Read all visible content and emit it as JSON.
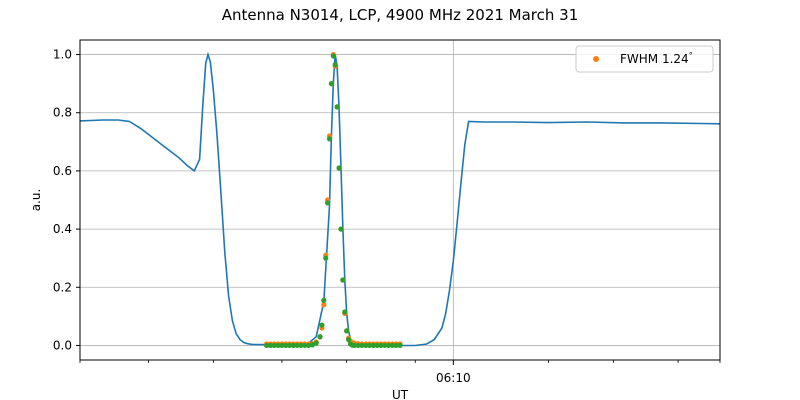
{
  "chart_data": {
    "type": "line",
    "title": "Antenna N3014, LCP, 4900 MHz 2021 March 31",
    "xlabel": "UT",
    "ylabel": "a.u.",
    "x_unit": "minutes UT",
    "xlim": [
      360.2,
      377.0
    ],
    "ylim": [
      -0.05,
      1.05
    ],
    "yticks": [
      0.0,
      0.2,
      0.4,
      0.6,
      0.8,
      1.0
    ],
    "xticks_major": [
      {
        "value": 370.0,
        "label": "06:10"
      }
    ],
    "xticks_minor": [
      360.2,
      362.0,
      363.7,
      365.5,
      367.2,
      369.0,
      372.5,
      374.2,
      375.9,
      377.0
    ],
    "grid": true,
    "legend_position": "top-right",
    "legend": [
      {
        "label": "FWHM 1.24$^\\circ$",
        "display": "FWHM 1.24",
        "suffix": "°",
        "color": "#ff7f0e"
      }
    ],
    "colors": {
      "line": "#1f77b4",
      "fit": "#ff7f0e",
      "data": "#2ca02c"
    },
    "series": [
      {
        "kind": "line",
        "color": "#1f77b4",
        "x": [
          360.2,
          360.8,
          361.2,
          361.5,
          361.8,
          362.0,
          362.2,
          362.4,
          362.6,
          362.8,
          363.0,
          363.2,
          363.34,
          363.42,
          363.5,
          363.56,
          363.62,
          363.7,
          363.8,
          363.9,
          364.0,
          364.1,
          364.2,
          364.3,
          364.4,
          364.5,
          364.6,
          364.7,
          364.8,
          364.9,
          365.0,
          365.2,
          365.4,
          365.6,
          365.8,
          366.0,
          366.2,
          366.4,
          366.6,
          366.75,
          366.8,
          366.85,
          366.9,
          366.95,
          367.0,
          367.05,
          367.1,
          367.15,
          367.2,
          367.25,
          367.3,
          367.35,
          367.4,
          367.45,
          367.5,
          367.6,
          367.8,
          368.0,
          368.5,
          369.0,
          369.3,
          369.5,
          369.7,
          369.8,
          369.9,
          370.0,
          370.1,
          370.2,
          370.3,
          370.4,
          370.8,
          371.5,
          372.5,
          373.5,
          374.5,
          375.5,
          376.5,
          377.0
        ],
        "y": [
          0.772,
          0.775,
          0.775,
          0.77,
          0.745,
          0.725,
          0.705,
          0.685,
          0.665,
          0.645,
          0.62,
          0.6,
          0.64,
          0.82,
          0.97,
          1.0,
          0.975,
          0.88,
          0.72,
          0.52,
          0.32,
          0.17,
          0.085,
          0.04,
          0.02,
          0.01,
          0.006,
          0.004,
          0.003,
          0.003,
          0.003,
          0.003,
          0.003,
          0.003,
          0.003,
          0.004,
          0.008,
          0.03,
          0.15,
          0.48,
          0.72,
          0.9,
          1.0,
          0.96,
          0.82,
          0.61,
          0.4,
          0.225,
          0.11,
          0.05,
          0.02,
          0.008,
          0.004,
          0.002,
          0.001,
          0.0,
          0.0,
          0.0,
          0.0,
          0.0,
          0.005,
          0.02,
          0.06,
          0.11,
          0.19,
          0.29,
          0.42,
          0.56,
          0.69,
          0.77,
          0.768,
          0.768,
          0.766,
          0.768,
          0.765,
          0.765,
          0.763,
          0.762
        ]
      },
      {
        "kind": "scatter",
        "name": "FWHM 1.24°",
        "color": "#ff7f0e",
        "x": [
          365.1,
          365.2,
          365.3,
          365.4,
          365.5,
          365.6,
          365.7,
          365.8,
          365.9,
          366.0,
          366.1,
          366.2,
          366.3,
          366.4,
          366.5,
          366.55,
          366.6,
          366.65,
          366.7,
          366.75,
          366.8,
          366.85,
          366.9,
          366.95,
          367.0,
          367.05,
          367.1,
          367.15,
          367.2,
          367.25,
          367.3,
          367.35,
          367.4,
          367.5,
          367.6,
          367.7,
          367.8,
          367.9,
          368.0,
          368.1,
          368.2,
          368.3,
          368.4,
          368.5,
          368.6
        ],
        "y": [
          0.005,
          0.005,
          0.005,
          0.005,
          0.005,
          0.005,
          0.005,
          0.005,
          0.005,
          0.005,
          0.005,
          0.005,
          0.006,
          0.012,
          0.03,
          0.06,
          0.14,
          0.31,
          0.5,
          0.72,
          0.9,
          1.0,
          0.96,
          0.82,
          0.61,
          0.4,
          0.225,
          0.11,
          0.05,
          0.025,
          0.015,
          0.01,
          0.008,
          0.006,
          0.005,
          0.005,
          0.005,
          0.005,
          0.005,
          0.005,
          0.005,
          0.005,
          0.005,
          0.005,
          0.005
        ]
      },
      {
        "kind": "scatter",
        "color": "#2ca02c",
        "x": [
          365.1,
          365.2,
          365.3,
          365.4,
          365.5,
          365.6,
          365.7,
          365.8,
          365.9,
          366.0,
          366.1,
          366.2,
          366.3,
          366.4,
          366.5,
          366.55,
          366.6,
          366.65,
          366.7,
          366.75,
          366.8,
          366.85,
          366.9,
          366.95,
          367.0,
          367.05,
          367.1,
          367.15,
          367.2,
          367.25,
          367.3,
          367.35,
          367.4,
          367.5,
          367.6,
          367.7,
          367.8,
          367.9,
          368.0,
          368.1,
          368.2,
          368.3,
          368.4,
          368.5,
          368.6
        ],
        "y": [
          0.0,
          0.0,
          0.0,
          0.0,
          0.0,
          0.0,
          0.0,
          0.0,
          0.0,
          0.0,
          0.0,
          0.0,
          0.002,
          0.008,
          0.03,
          0.07,
          0.155,
          0.3,
          0.49,
          0.71,
          0.9,
          0.995,
          0.965,
          0.82,
          0.61,
          0.4,
          0.225,
          0.115,
          0.05,
          0.02,
          0.005,
          0.001,
          0.0,
          0.0,
          0.0,
          0.0,
          0.0,
          0.0,
          0.0,
          0.0,
          0.0,
          0.0,
          0.0,
          0.0,
          0.0
        ]
      }
    ]
  }
}
